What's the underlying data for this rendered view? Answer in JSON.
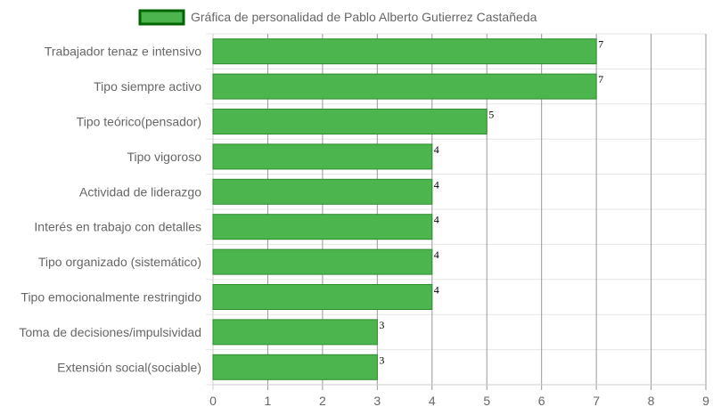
{
  "chart_data": {
    "type": "bar",
    "orientation": "horizontal",
    "title": "",
    "xlabel": "",
    "ylabel": "",
    "categories": [
      "Trabajador tenaz e intensivo",
      "Tipo siempre activo",
      "Tipo teórico(pensador)",
      "Tipo vigoroso",
      "Actividad de liderazgo",
      "Interés en trabajo con detalles",
      "Tipo organizado (sistemático)",
      "Tipo emocionalmente restringido",
      "Toma de decisiones/impulsividad",
      "Extensión social(sociable)"
    ],
    "series": [
      {
        "name": "Gráfica de personalidad de Pablo Alberto Gutierrez Castañeda",
        "values": [
          7,
          7,
          5,
          4,
          4,
          4,
          4,
          4,
          3,
          3
        ]
      }
    ],
    "xlim": [
      0,
      9
    ],
    "xticks": [
      "0",
      "1",
      "2",
      "3",
      "4",
      "5",
      "6",
      "7",
      "8",
      "9"
    ],
    "grid": true,
    "legend_position": "top",
    "colors": {
      "bar_fill": "#4db54d",
      "bar_border": "#2e8b2e",
      "legend_fill": "#4db54d",
      "legend_border": "#006400",
      "grid": "#e5e5e5",
      "vertical_grid": "#999999"
    }
  }
}
